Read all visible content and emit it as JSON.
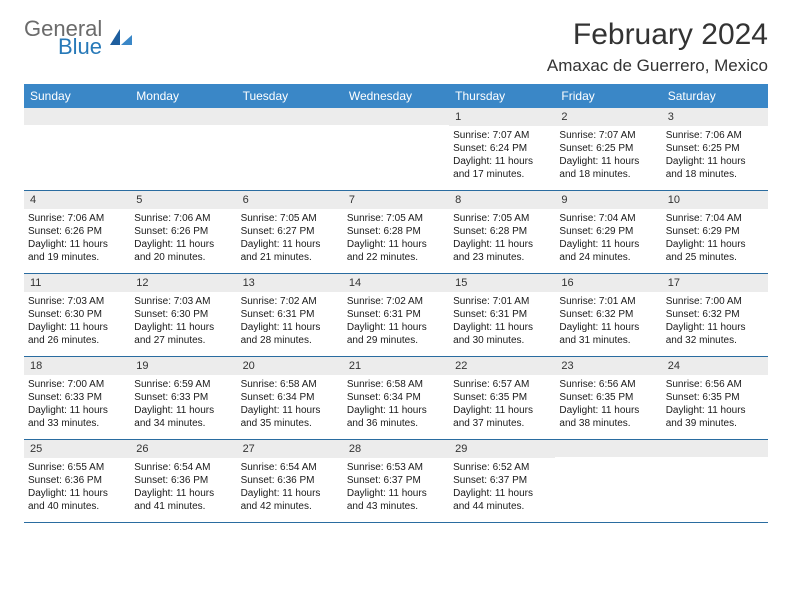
{
  "logo": {
    "word1": "General",
    "word2": "Blue"
  },
  "title": "February 2024",
  "location": "Amaxac de Guerrero, Mexico",
  "colors": {
    "header_bar": "#3a87c7",
    "week_border": "#2a6ca0",
    "daynum_bg": "#ececec",
    "logo_gray": "#6b6b6b",
    "logo_blue": "#2779b8"
  },
  "daynames": [
    "Sunday",
    "Monday",
    "Tuesday",
    "Wednesday",
    "Thursday",
    "Friday",
    "Saturday"
  ],
  "weeks": [
    [
      null,
      null,
      null,
      null,
      {
        "n": "1",
        "sr": "Sunrise: 7:07 AM",
        "ss": "Sunset: 6:24 PM",
        "d1": "Daylight: 11 hours",
        "d2": "and 17 minutes."
      },
      {
        "n": "2",
        "sr": "Sunrise: 7:07 AM",
        "ss": "Sunset: 6:25 PM",
        "d1": "Daylight: 11 hours",
        "d2": "and 18 minutes."
      },
      {
        "n": "3",
        "sr": "Sunrise: 7:06 AM",
        "ss": "Sunset: 6:25 PM",
        "d1": "Daylight: 11 hours",
        "d2": "and 18 minutes."
      }
    ],
    [
      {
        "n": "4",
        "sr": "Sunrise: 7:06 AM",
        "ss": "Sunset: 6:26 PM",
        "d1": "Daylight: 11 hours",
        "d2": "and 19 minutes."
      },
      {
        "n": "5",
        "sr": "Sunrise: 7:06 AM",
        "ss": "Sunset: 6:26 PM",
        "d1": "Daylight: 11 hours",
        "d2": "and 20 minutes."
      },
      {
        "n": "6",
        "sr": "Sunrise: 7:05 AM",
        "ss": "Sunset: 6:27 PM",
        "d1": "Daylight: 11 hours",
        "d2": "and 21 minutes."
      },
      {
        "n": "7",
        "sr": "Sunrise: 7:05 AM",
        "ss": "Sunset: 6:28 PM",
        "d1": "Daylight: 11 hours",
        "d2": "and 22 minutes."
      },
      {
        "n": "8",
        "sr": "Sunrise: 7:05 AM",
        "ss": "Sunset: 6:28 PM",
        "d1": "Daylight: 11 hours",
        "d2": "and 23 minutes."
      },
      {
        "n": "9",
        "sr": "Sunrise: 7:04 AM",
        "ss": "Sunset: 6:29 PM",
        "d1": "Daylight: 11 hours",
        "d2": "and 24 minutes."
      },
      {
        "n": "10",
        "sr": "Sunrise: 7:04 AM",
        "ss": "Sunset: 6:29 PM",
        "d1": "Daylight: 11 hours",
        "d2": "and 25 minutes."
      }
    ],
    [
      {
        "n": "11",
        "sr": "Sunrise: 7:03 AM",
        "ss": "Sunset: 6:30 PM",
        "d1": "Daylight: 11 hours",
        "d2": "and 26 minutes."
      },
      {
        "n": "12",
        "sr": "Sunrise: 7:03 AM",
        "ss": "Sunset: 6:30 PM",
        "d1": "Daylight: 11 hours",
        "d2": "and 27 minutes."
      },
      {
        "n": "13",
        "sr": "Sunrise: 7:02 AM",
        "ss": "Sunset: 6:31 PM",
        "d1": "Daylight: 11 hours",
        "d2": "and 28 minutes."
      },
      {
        "n": "14",
        "sr": "Sunrise: 7:02 AM",
        "ss": "Sunset: 6:31 PM",
        "d1": "Daylight: 11 hours",
        "d2": "and 29 minutes."
      },
      {
        "n": "15",
        "sr": "Sunrise: 7:01 AM",
        "ss": "Sunset: 6:31 PM",
        "d1": "Daylight: 11 hours",
        "d2": "and 30 minutes."
      },
      {
        "n": "16",
        "sr": "Sunrise: 7:01 AM",
        "ss": "Sunset: 6:32 PM",
        "d1": "Daylight: 11 hours",
        "d2": "and 31 minutes."
      },
      {
        "n": "17",
        "sr": "Sunrise: 7:00 AM",
        "ss": "Sunset: 6:32 PM",
        "d1": "Daylight: 11 hours",
        "d2": "and 32 minutes."
      }
    ],
    [
      {
        "n": "18",
        "sr": "Sunrise: 7:00 AM",
        "ss": "Sunset: 6:33 PM",
        "d1": "Daylight: 11 hours",
        "d2": "and 33 minutes."
      },
      {
        "n": "19",
        "sr": "Sunrise: 6:59 AM",
        "ss": "Sunset: 6:33 PM",
        "d1": "Daylight: 11 hours",
        "d2": "and 34 minutes."
      },
      {
        "n": "20",
        "sr": "Sunrise: 6:58 AM",
        "ss": "Sunset: 6:34 PM",
        "d1": "Daylight: 11 hours",
        "d2": "and 35 minutes."
      },
      {
        "n": "21",
        "sr": "Sunrise: 6:58 AM",
        "ss": "Sunset: 6:34 PM",
        "d1": "Daylight: 11 hours",
        "d2": "and 36 minutes."
      },
      {
        "n": "22",
        "sr": "Sunrise: 6:57 AM",
        "ss": "Sunset: 6:35 PM",
        "d1": "Daylight: 11 hours",
        "d2": "and 37 minutes."
      },
      {
        "n": "23",
        "sr": "Sunrise: 6:56 AM",
        "ss": "Sunset: 6:35 PM",
        "d1": "Daylight: 11 hours",
        "d2": "and 38 minutes."
      },
      {
        "n": "24",
        "sr": "Sunrise: 6:56 AM",
        "ss": "Sunset: 6:35 PM",
        "d1": "Daylight: 11 hours",
        "d2": "and 39 minutes."
      }
    ],
    [
      {
        "n": "25",
        "sr": "Sunrise: 6:55 AM",
        "ss": "Sunset: 6:36 PM",
        "d1": "Daylight: 11 hours",
        "d2": "and 40 minutes."
      },
      {
        "n": "26",
        "sr": "Sunrise: 6:54 AM",
        "ss": "Sunset: 6:36 PM",
        "d1": "Daylight: 11 hours",
        "d2": "and 41 minutes."
      },
      {
        "n": "27",
        "sr": "Sunrise: 6:54 AM",
        "ss": "Sunset: 6:36 PM",
        "d1": "Daylight: 11 hours",
        "d2": "and 42 minutes."
      },
      {
        "n": "28",
        "sr": "Sunrise: 6:53 AM",
        "ss": "Sunset: 6:37 PM",
        "d1": "Daylight: 11 hours",
        "d2": "and 43 minutes."
      },
      {
        "n": "29",
        "sr": "Sunrise: 6:52 AM",
        "ss": "Sunset: 6:37 PM",
        "d1": "Daylight: 11 hours",
        "d2": "and 44 minutes."
      },
      null,
      null
    ]
  ]
}
